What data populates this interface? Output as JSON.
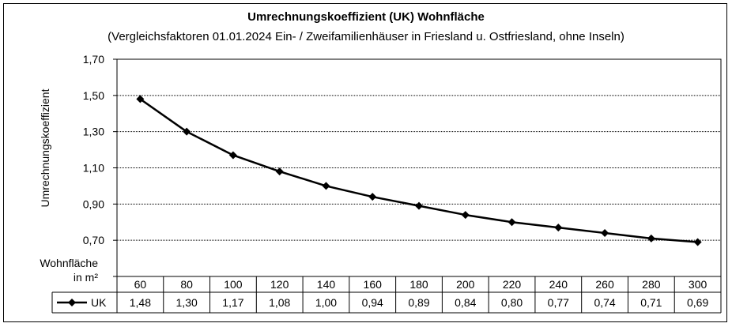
{
  "chart_data": {
    "type": "line",
    "title": "Umrechnungskoeffizient  (UK) Wohnfläche",
    "subtitle": "(Vergleichsfaktoren 01.01.2024 Ein- / Zweifamilienhäuser  in Friesland u. Ostfriesland,  ohne Inseln)",
    "ylabel": "Umrechnungskoeffizient",
    "x_unit_label": [
      "Wohnfläche",
      "in m²"
    ],
    "ylim": [
      0.5,
      1.7
    ],
    "yticks": [
      "",
      "0,70",
      "0,90",
      "1,10",
      "1,30",
      "1,50",
      "1,70"
    ],
    "ytick_values": [
      0.5,
      0.7,
      0.9,
      1.1,
      1.3,
      1.5,
      1.7
    ],
    "grid": true,
    "legend_placement": "data-table",
    "categories": [
      "60",
      "80",
      "100",
      "120",
      "140",
      "160",
      "180",
      "200",
      "220",
      "240",
      "260",
      "280",
      "300"
    ],
    "series": [
      {
        "name": "UK",
        "values": [
          1.48,
          1.3,
          1.17,
          1.08,
          1.0,
          0.94,
          0.89,
          0.84,
          0.8,
          0.77,
          0.74,
          0.71,
          0.69
        ],
        "labels": [
          "1,48",
          "1,30",
          "1,17",
          "1,08",
          "1,00",
          "0,94",
          "0,89",
          "0,84",
          "0,80",
          "0,77",
          "0,74",
          "0,71",
          "0,69"
        ],
        "color": "#000000",
        "marker": "diamond"
      }
    ]
  }
}
